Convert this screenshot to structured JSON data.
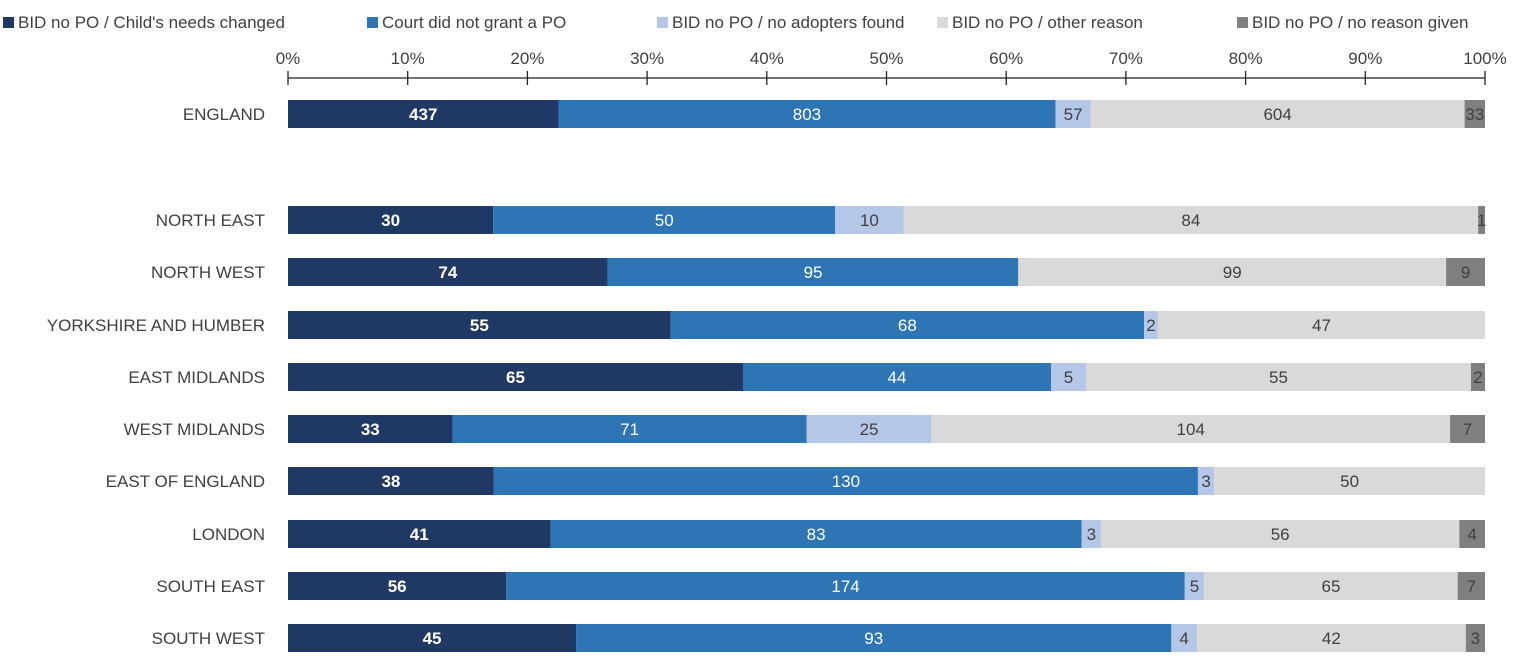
{
  "chart_data": {
    "type": "bar",
    "orientation": "horizontal",
    "stacked": "percent",
    "xlim": [
      0,
      100
    ],
    "x_ticks": [
      "0%",
      "10%",
      "20%",
      "30%",
      "40%",
      "50%",
      "60%",
      "70%",
      "80%",
      "90%",
      "100%"
    ],
    "legend_position": "top",
    "grid": false,
    "categories": [
      "ENGLAND",
      "NORTH EAST",
      "NORTH WEST",
      "YORKSHIRE AND HUMBER",
      "EAST MIDLANDS",
      "WEST MIDLANDS",
      "EAST OF ENGLAND",
      "LONDON",
      "SOUTH EAST",
      "SOUTH WEST"
    ],
    "series": [
      {
        "name": "BID no PO / Child's needs changed",
        "color": "#203864",
        "label_color": "#ffffff",
        "label_bold": true,
        "values": [
          437,
          30,
          74,
          55,
          65,
          33,
          38,
          41,
          56,
          45
        ]
      },
      {
        "name": "Court did not grant a PO",
        "color": "#2e75b6",
        "label_color": "#ffffff",
        "label_bold": false,
        "values": [
          803,
          50,
          95,
          68,
          44,
          71,
          130,
          83,
          174,
          93
        ]
      },
      {
        "name": "BID no PO / no adopters found",
        "color": "#b4c7e7",
        "label_color": "#404040",
        "label_bold": false,
        "values": [
          57,
          10,
          0,
          2,
          5,
          25,
          3,
          3,
          5,
          4
        ]
      },
      {
        "name": "BID no PO / other reason",
        "color": "#d9d9d9",
        "label_color": "#404040",
        "label_bold": false,
        "values": [
          604,
          84,
          99,
          47,
          55,
          104,
          50,
          56,
          65,
          42
        ]
      },
      {
        "name": "BID no PO / no reason given",
        "color": "#7f7f7f",
        "label_color": "#404040",
        "label_bold": false,
        "values": [
          33,
          1,
          9,
          0,
          2,
          7,
          0,
          4,
          7,
          3
        ]
      }
    ]
  }
}
